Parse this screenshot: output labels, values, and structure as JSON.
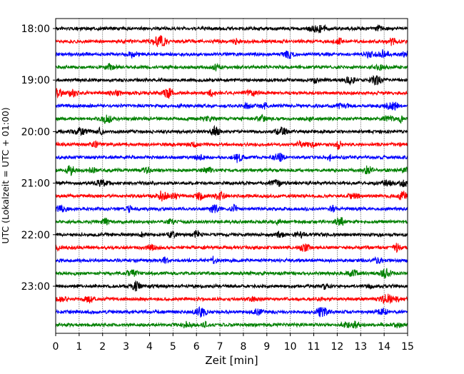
{
  "chart_data": {
    "type": "line",
    "title": "",
    "xlabel": "Zeit  [min]",
    "ylabel": "UTC (Lokalzeit = UTC + 01:00)",
    "xlim": [
      0,
      15
    ],
    "x_ticks": [
      0,
      1,
      2,
      3,
      4,
      5,
      6,
      7,
      8,
      9,
      10,
      11,
      12,
      13,
      14,
      15
    ],
    "x_tick_labels": [
      "0",
      "1",
      "2",
      "3",
      "4",
      "5",
      "6",
      "7",
      "8",
      "9",
      "10",
      "11",
      "12",
      "13",
      "14",
      "15"
    ],
    "y_tick_labels": [
      "18:00",
      "19:00",
      "20:00",
      "21:00",
      "22:00",
      "23:00"
    ],
    "y_tick_trace_index": [
      0,
      4,
      8,
      12,
      16,
      20
    ],
    "grid": "vertical-dotted",
    "color_cycle": [
      "#000000",
      "#ff0000",
      "#0000ff",
      "#008000"
    ],
    "series": [
      {
        "start": "18:00",
        "color": "#000000"
      },
      {
        "start": "18:15",
        "color": "#ff0000"
      },
      {
        "start": "18:30",
        "color": "#0000ff"
      },
      {
        "start": "18:45",
        "color": "#008000"
      },
      {
        "start": "19:00",
        "color": "#000000"
      },
      {
        "start": "19:15",
        "color": "#ff0000"
      },
      {
        "start": "19:30",
        "color": "#0000ff"
      },
      {
        "start": "19:45",
        "color": "#008000"
      },
      {
        "start": "20:00",
        "color": "#000000"
      },
      {
        "start": "20:15",
        "color": "#ff0000"
      },
      {
        "start": "20:30",
        "color": "#0000ff"
      },
      {
        "start": "20:45",
        "color": "#008000"
      },
      {
        "start": "21:00",
        "color": "#000000"
      },
      {
        "start": "21:15",
        "color": "#ff0000"
      },
      {
        "start": "21:30",
        "color": "#0000ff"
      },
      {
        "start": "21:45",
        "color": "#008000"
      },
      {
        "start": "22:00",
        "color": "#000000"
      },
      {
        "start": "22:15",
        "color": "#ff0000"
      },
      {
        "start": "22:30",
        "color": "#0000ff"
      },
      {
        "start": "22:45",
        "color": "#008000"
      },
      {
        "start": "23:00",
        "color": "#000000"
      },
      {
        "start": "23:15",
        "color": "#ff0000"
      },
      {
        "start": "23:30",
        "color": "#0000ff"
      },
      {
        "start": "23:45",
        "color": "#008000"
      }
    ]
  }
}
